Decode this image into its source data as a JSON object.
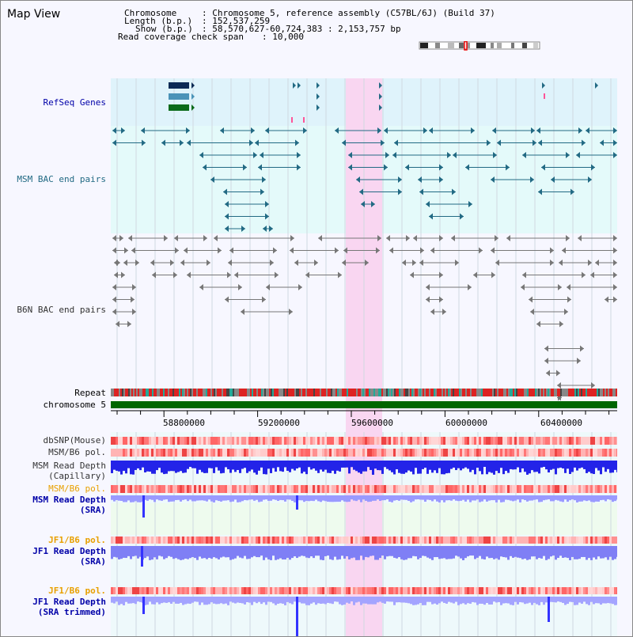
{
  "title": "Map View",
  "info": {
    "chromosome_key": "Chromosome",
    "chromosome_val": ": Chromosome 5, reference assembly (C57BL/6J) (Build 37)",
    "length_key": "Length (b.p.)",
    "length_val": ": 152,537,259",
    "show_key": "Show (b.p.)",
    "show_val": ": 58,570,627-60,724,383 : 2,153,757 bp",
    "coverage_key": "Read coverage check span",
    "coverage_val": ": 10,000"
  },
  "tracks": {
    "refseq": "RefSeq Genes",
    "msm_bac": "MSM BAC end pairs",
    "b6n_bac": "B6N BAC end pairs",
    "repeat": "Repeat",
    "chromosome": "chromosome 5",
    "dbsnp": "dbSNP(Mouse)",
    "msm_b6_pol_1": "MSM/B6 pol.",
    "msm_depth_cap_1": "MSM Read Depth",
    "msm_depth_cap_2": "(Capillary)",
    "msm_b6_pol_2": "MSM/B6 pol.",
    "msm_depth_sra_1": "MSM Read Depth",
    "msm_depth_sra_2": "(SRA)",
    "jf1_b6_pol_1": "JF1/B6 pol.",
    "jf1_depth_sra_1": "JF1 Read Depth",
    "jf1_depth_sra_2": "(SRA)",
    "jf1_b6_pol_2": "JF1/B6 pol.",
    "jf1_depth_trim_1": "JF1 Read Depth",
    "jf1_depth_trim_2": "(SRA trimmed)"
  },
  "axis_ticks": [
    "58800000",
    "59200000",
    "59600000",
    "60000000",
    "60400000"
  ],
  "colors": {
    "refseq_bg": "#dff3fb",
    "msm_bg": "#e4fafa",
    "highlight": "#f9d6f1",
    "chromosome_bar": "#006600",
    "depth_blue": "#2a2af0",
    "depth_light": "#8888ff",
    "snp_red": "#e63a3a"
  }
}
